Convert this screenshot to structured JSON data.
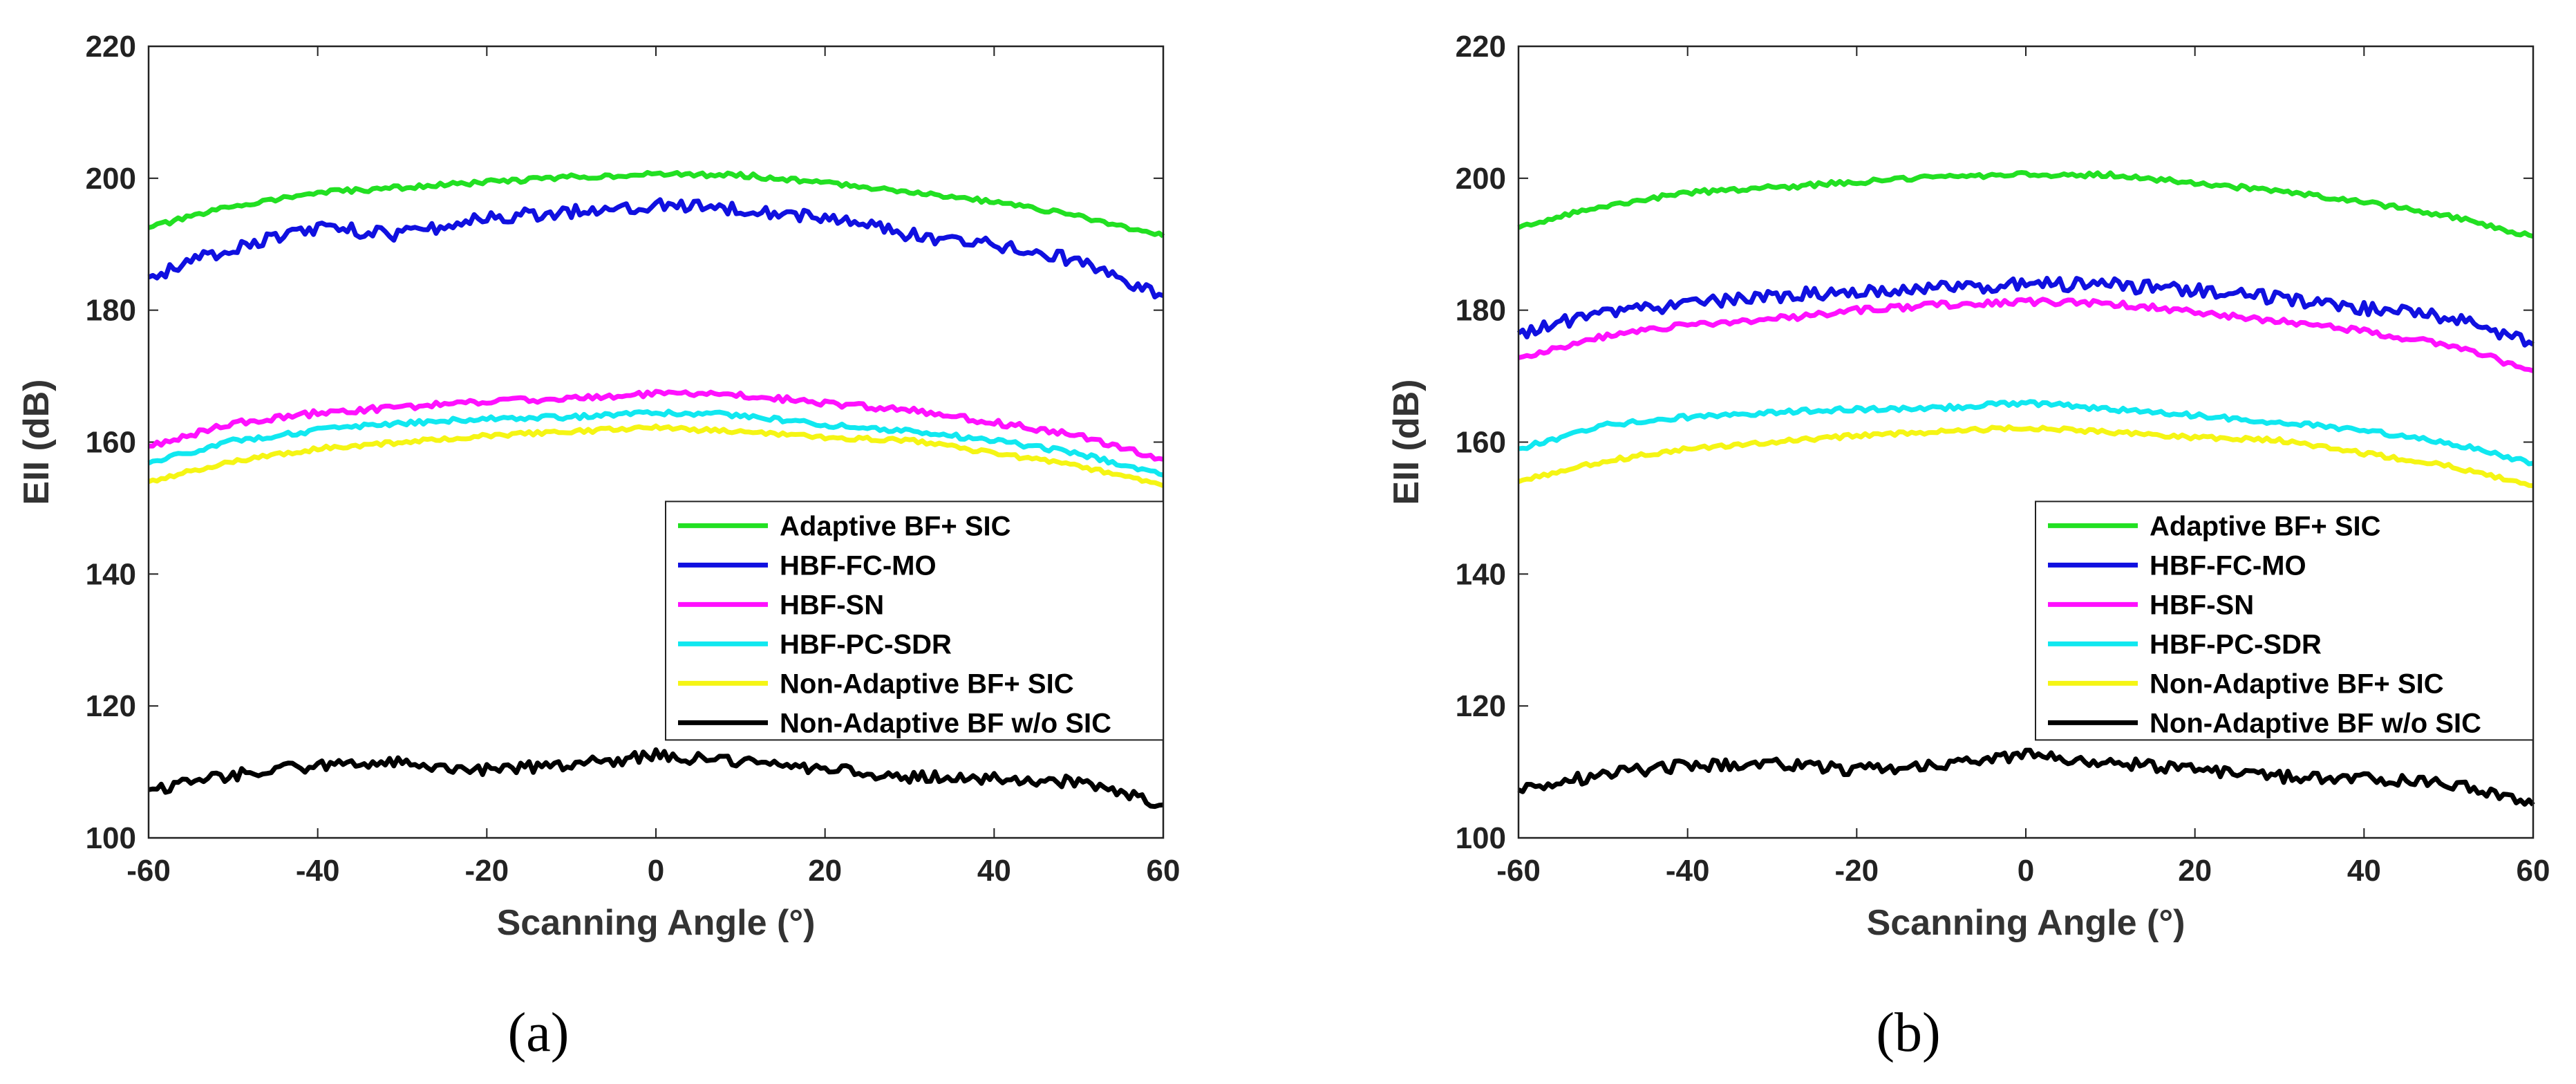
{
  "chart_data": [
    {
      "type": "line",
      "panel_label": "(a)",
      "xlabel": "Scanning Angle (°)",
      "ylabel": "EII (dB)",
      "xlim": [
        -60,
        60
      ],
      "ylim": [
        100,
        220
      ],
      "xticks": [
        -60,
        -40,
        -20,
        0,
        20,
        40,
        60
      ],
      "yticks": [
        100,
        120,
        140,
        160,
        180,
        200,
        220
      ],
      "legend_position": "lower-right",
      "x": [
        -60,
        -50,
        -40,
        -30,
        -20,
        -10,
        0,
        10,
        20,
        30,
        40,
        50,
        60
      ],
      "series": [
        {
          "name": "Adaptive BF+ SIC",
          "color": "#22e022",
          "values": [
            192.5,
            195.8,
            197.8,
            198.6,
            199.4,
            200.2,
            200.6,
            200.5,
            199.3,
            198.0,
            196.4,
            194.3,
            191.2
          ]
        },
        {
          "name": "HBF-FC-MO",
          "color": "#1010e0",
          "values": [
            185.0,
            189.5,
            192.5,
            191.5,
            194.0,
            195.0,
            196.0,
            195.5,
            194.0,
            191.5,
            189.8,
            187.5,
            182.2
          ]
        },
        {
          "name": "HBF-SN",
          "color": "#ff10ff",
          "values": [
            159.4,
            162.8,
            164.4,
            165.3,
            166.2,
            166.6,
            167.3,
            167.2,
            165.9,
            164.8,
            163.0,
            161.0,
            157.4
          ]
        },
        {
          "name": "HBF-PC-SDR",
          "color": "#10e8f0",
          "values": [
            156.8,
            160.2,
            161.8,
            162.9,
            163.6,
            163.8,
            164.5,
            164.1,
            162.6,
            161.7,
            160.2,
            158.3,
            155.0
          ]
        },
        {
          "name": "Non-Adaptive BF+ SIC",
          "color": "#f5f514",
          "values": [
            154.0,
            157.1,
            159.0,
            160.0,
            161.0,
            161.6,
            162.2,
            161.5,
            160.7,
            160.3,
            158.3,
            156.4,
            153.4
          ]
        },
        {
          "name": "Non-Adaptive BF w/o SIC",
          "color": "#000000",
          "values": [
            107.3,
            109.6,
            111.0,
            111.3,
            110.3,
            111.1,
            112.5,
            111.4,
            110.5,
            109.3,
            109.0,
            108.4,
            105.0
          ]
        }
      ]
    },
    {
      "type": "line",
      "panel_label": "(b)",
      "xlabel": "Scanning Angle (°)",
      "ylabel": "EII (dB)",
      "xlim": [
        -60,
        60
      ],
      "ylim": [
        100,
        220
      ],
      "xticks": [
        -60,
        -40,
        -20,
        0,
        20,
        40,
        60
      ],
      "yticks": [
        100,
        120,
        140,
        160,
        180,
        200,
        220
      ],
      "legend_position": "lower-right",
      "x": [
        -60,
        -50,
        -40,
        -30,
        -20,
        -10,
        0,
        10,
        20,
        30,
        40,
        50,
        60
      ],
      "series": [
        {
          "name": "Adaptive BF+ SIC",
          "color": "#22e022",
          "values": [
            192.5,
            195.8,
            197.8,
            198.6,
            199.4,
            200.2,
            200.6,
            200.5,
            199.3,
            198.0,
            196.4,
            194.3,
            191.2
          ]
        },
        {
          "name": "HBF-FC-MO",
          "color": "#1010e0",
          "values": [
            176.5,
            179.6,
            181.0,
            182.0,
            183.0,
            183.3,
            184.0,
            183.8,
            183.0,
            181.8,
            180.2,
            178.9,
            174.8
          ]
        },
        {
          "name": "HBF-SN",
          "color": "#ff10ff",
          "values": [
            172.8,
            176.0,
            177.8,
            178.6,
            180.0,
            180.8,
            181.3,
            181.0,
            179.8,
            178.3,
            176.8,
            174.8,
            170.8
          ]
        },
        {
          "name": "HBF-PC-SDR",
          "color": "#10e8f0",
          "values": [
            159.0,
            162.5,
            163.8,
            164.5,
            165.0,
            165.2,
            166.0,
            165.0,
            164.0,
            163.0,
            161.8,
            159.9,
            156.8
          ]
        },
        {
          "name": "Non-Adaptive BF+ SIC",
          "color": "#f5f514",
          "values": [
            154.0,
            157.1,
            159.0,
            160.0,
            161.0,
            161.6,
            162.2,
            161.5,
            160.7,
            160.3,
            158.3,
            156.4,
            153.4
          ]
        },
        {
          "name": "Non-Adaptive BF w/o SIC",
          "color": "#000000",
          "values": [
            107.3,
            109.6,
            111.0,
            111.3,
            110.3,
            111.1,
            112.5,
            111.4,
            110.5,
            109.3,
            109.0,
            108.4,
            105.0
          ]
        }
      ]
    }
  ]
}
